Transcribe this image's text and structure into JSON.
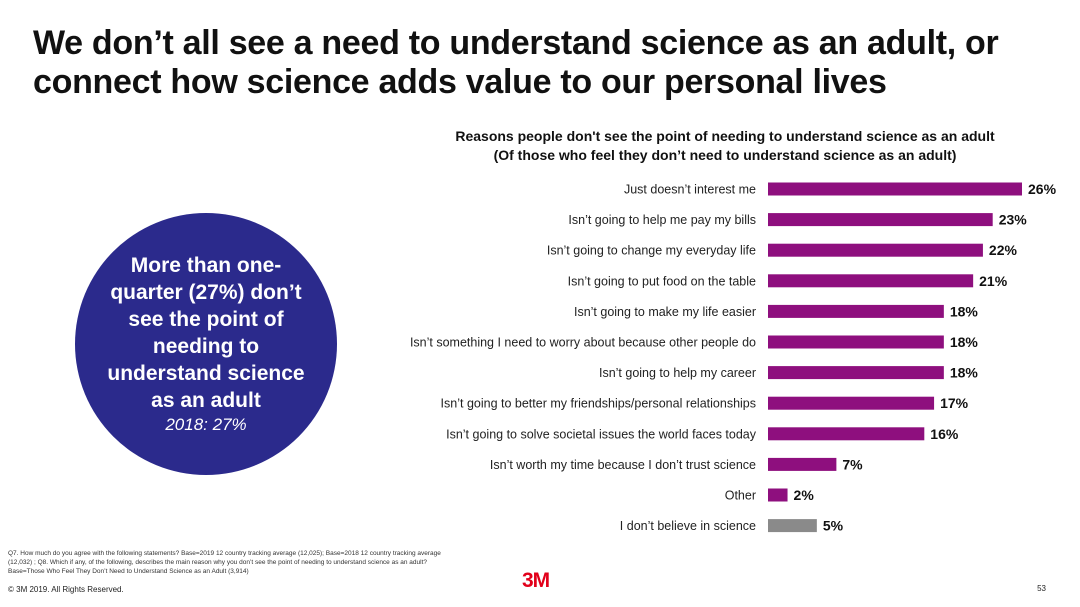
{
  "headline": "We don’t all see a need to understand science as an adult, or connect how science adds value to our personal lives",
  "callout": {
    "text": "More than one-quarter (27%) don’t see the point of needing to understand science as an adult",
    "subtext": "2018: 27%",
    "color": "#2b2a8c"
  },
  "chart_data": {
    "type": "bar",
    "orientation": "horizontal",
    "title": "Reasons people don't see the point of needing to understand science as an adult",
    "subtitle": "(Of those who feel they don’t need to understand science as an adult)",
    "categories": [
      "Just doesn’t interest me",
      "Isn’t going to help me pay my bills",
      "Isn’t going to change my everyday life",
      "Isn’t going to put food on the table",
      "Isn’t going to make my life easier",
      "Isn’t something I need to worry about because other people do",
      "Isn’t going to help my career",
      "Isn’t going to better my friendships/personal relationships",
      "Isn’t going to solve societal issues the world faces today",
      "Isn’t worth my time because I don’t trust science",
      "Other",
      "I don’t believe in science"
    ],
    "values": [
      26,
      23,
      22,
      21,
      18,
      18,
      18,
      17,
      16,
      7,
      2,
      5
    ],
    "labels": [
      "26%",
      "23%",
      "22%",
      "21%",
      "18%",
      "18%",
      "18%",
      "17%",
      "16%",
      "7%",
      "2%",
      "5%"
    ],
    "colors": [
      "#8e0f7e",
      "#8e0f7e",
      "#8e0f7e",
      "#8e0f7e",
      "#8e0f7e",
      "#8e0f7e",
      "#8e0f7e",
      "#8e0f7e",
      "#8e0f7e",
      "#8e0f7e",
      "#8e0f7e",
      "#8a8a8a"
    ],
    "xlim": [
      0,
      26
    ],
    "xlabel": "",
    "ylabel": ""
  },
  "footnote": "Q7. How much do you agree with the following statements? Base=2019 12 country tracking average (12,025); Base=2018 12 country tracking average (12,032) ; Q8. Which if any, of the following, describes the main reason why you don’t see the point of needing to understand science as an adult? Base=Those Who Feel They Don’t Need to Understand Science as an Adult (3,914)",
  "copyright": "© 3M 2019.   All Rights Reserved.",
  "logo": "3M",
  "page_number": "53"
}
